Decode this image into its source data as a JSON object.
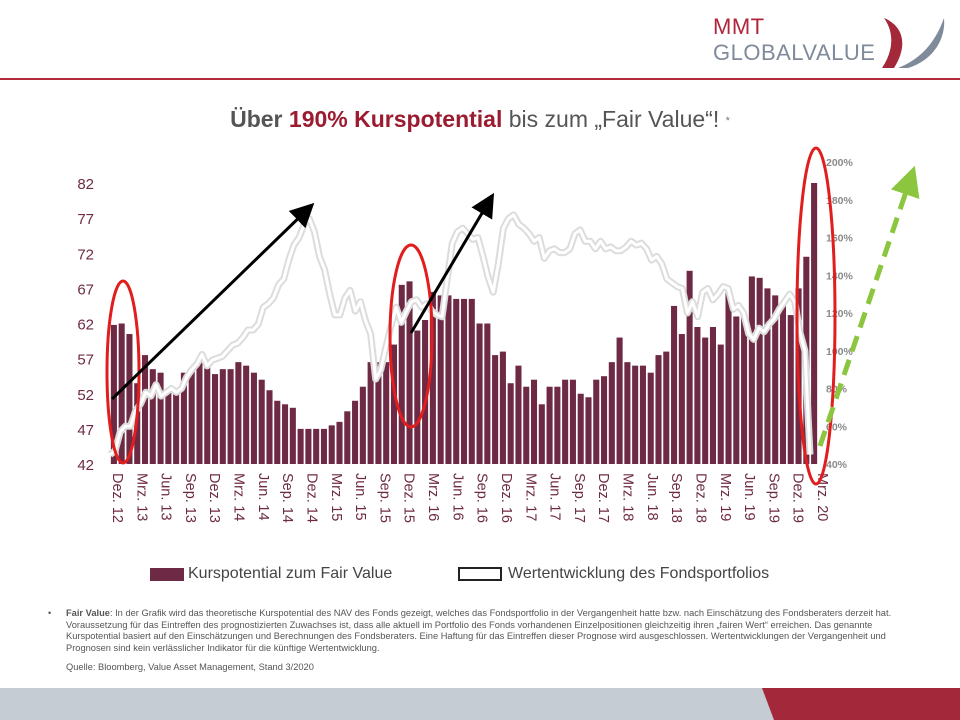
{
  "brand": {
    "line1": "MMT",
    "line2": "GLOBALVALUE"
  },
  "title": {
    "part1": "Über",
    "part2": "190% Kurspotential",
    "part3": "bis zum „Fair Value“!",
    "star": "*"
  },
  "legend": {
    "bars": "Kurspotential zum Fair Value",
    "line": "Wertentwicklung des Fondsportfolios"
  },
  "colors": {
    "bar": "#6e2a45",
    "accent": "#9b1b30",
    "ellipse": "#e21d1d",
    "green_arrow": "#8cc63f",
    "footer": "#c5ccd4"
  },
  "footnote": {
    "bullet": "•",
    "label": "Fair Value",
    "text": ": In der Grafik wird das theoretische Kurspotential des NAV des Fonds gezeigt, welches das Fondsportfolio in der Vergangenheit hatte bzw. nach Einschätzung des Fondsberaters derzeit hat. Voraussetzung für das Eintreffen des prognostizierten Zuwachses ist, dass alle aktuell im Portfolio des Fonds vorhandenen Einzelpositionen gleichzeitig ihren „fairen Wert“ erreichen. Das genannte Kurspotential basiert auf den Einschätzungen und Berechnungen des Fondsberaters. Eine Haftung für das Eintreffen dieser Prognose wird ausgeschlossen. Wertentwicklungen der Vergangenheit und Prognosen sind kein verlässlicher Indikator für die künftige Wertentwicklung."
  },
  "source": "Quelle: Bloomberg, Value Asset Management, Stand 3/2020",
  "chart_data": {
    "type": "bar",
    "title": "Über 190% Kurspotential bis zum „Fair Value“!",
    "grid": false,
    "legend_position": "bottom",
    "x_tick_labels": [
      "Dez. 12",
      "Mrz. 13",
      "Jun. 13",
      "Sep. 13",
      "Dez. 13",
      "Mrz. 14",
      "Jun. 14",
      "Sep. 14",
      "Dez. 14",
      "Mrz. 15",
      "Jun. 15",
      "Sep. 15",
      "Dez. 15",
      "Mrz. 16",
      "Jun. 16",
      "Sep. 16",
      "Dez. 16",
      "Mrz. 17",
      "Jun. 17",
      "Sep. 17",
      "Dez. 17",
      "Mrz. 18",
      "Jun. 18",
      "Sep. 18",
      "Dez. 18",
      "Mrz. 19",
      "Jun. 19",
      "Sep. 19",
      "Dez. 19",
      "Mrz. 20"
    ],
    "y_left": {
      "ticks": [
        42,
        47,
        52,
        57,
        62,
        67,
        72,
        77,
        82
      ],
      "range": [
        42,
        84
      ]
    },
    "y_right": {
      "ticks": [
        "40%",
        "60%",
        "80%",
        "100%",
        "120%",
        "140%",
        "160%",
        "180%",
        "200%"
      ],
      "range": [
        40,
        205
      ]
    },
    "series": [
      {
        "name": "Kurspotential zum Fair Value",
        "axis": "left",
        "type": "bar",
        "values": [
          61.8,
          62,
          60.5,
          53.5,
          57.5,
          55.5,
          55,
          52.5,
          52.5,
          55,
          55.5,
          56.5,
          56,
          54.8,
          55.5,
          55.5,
          56.5,
          56,
          55,
          54,
          52.5,
          51,
          50.5,
          50,
          47,
          47,
          47,
          47,
          47.5,
          48,
          49.5,
          51,
          53,
          56.5,
          56.5,
          56.5,
          59,
          67.5,
          68,
          61,
          62.5,
          66.5,
          66,
          66,
          65.5,
          65.5,
          65.5,
          62,
          62,
          57.5,
          58,
          53.5,
          56,
          53,
          54,
          50.5,
          53,
          53,
          54,
          54,
          52,
          51.5,
          54,
          54.5,
          56.5,
          60,
          56.5,
          56,
          56,
          55,
          57.5,
          58,
          64.5,
          60.5,
          69.5,
          61.5,
          60,
          61.5,
          59,
          67,
          63,
          63,
          68.7,
          68.5,
          67,
          66,
          65,
          63.2,
          67,
          71.5,
          82
        ]
      },
      {
        "name": "Wertentwicklung des Fondsportfolios",
        "axis": "right",
        "type": "line",
        "values": [
          45,
          47,
          57,
          60,
          60,
          68,
          72,
          78,
          76,
          82,
          76,
          78,
          80,
          78,
          80,
          86,
          90,
          93,
          98,
          92,
          95,
          96,
          97,
          100,
          103,
          104,
          107,
          111,
          111,
          114,
          123,
          125,
          128,
          135,
          138,
          148,
          156,
          160,
          167,
          170,
          163,
          150,
          143,
          130,
          119,
          119,
          128,
          132,
          121,
          126,
          116,
          109,
          85,
          90,
          102,
          113,
          123,
          115,
          121,
          126,
          127,
          123,
          125,
          121,
          119,
          118,
          138,
          157,
          163,
          165,
          162,
          159,
          160,
          150,
          139,
          131,
          146,
          165,
          170,
          172,
          167,
          165,
          162,
          158,
          160,
          149,
          153,
          154,
          152,
          152,
          154,
          162,
          164,
          158,
          158,
          154,
          158,
          154,
          155,
          153,
          153,
          155,
          158,
          156,
          157,
          154,
          148,
          150,
          146,
          138,
          136,
          134,
          133,
          120,
          126,
          118,
          131,
          133,
          127,
          130,
          134,
          133,
          122,
          124,
          120,
          109,
          106,
          112,
          110,
          114,
          117,
          122,
          126,
          130,
          126,
          110,
          100,
          45
        ]
      }
    ],
    "annotations": [
      {
        "type": "ellipse",
        "color": "red",
        "note": "Dez. 12"
      },
      {
        "type": "ellipse",
        "color": "red",
        "note": "Dez. 15 / Mrz. 16"
      },
      {
        "type": "ellipse",
        "color": "red",
        "note": "Mrz. 20"
      },
      {
        "type": "arrow",
        "color": "black",
        "note": "upward trend from Dez. 12"
      },
      {
        "type": "arrow",
        "color": "black",
        "note": "upward trend from Mrz. 16"
      },
      {
        "type": "arrow",
        "color": "green",
        "style": "dashed",
        "note": "forecast"
      }
    ]
  }
}
